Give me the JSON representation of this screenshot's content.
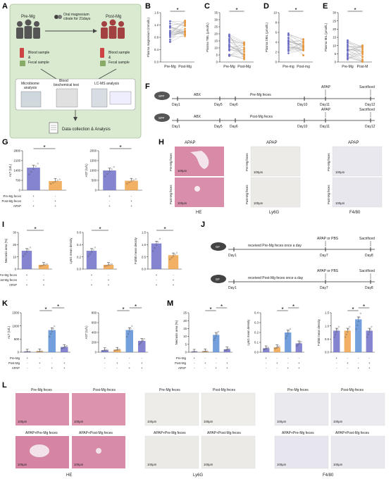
{
  "panel_labels": [
    "A",
    "B",
    "C",
    "D",
    "E",
    "F",
    "G",
    "H",
    "I",
    "J",
    "K",
    "L",
    "M"
  ],
  "panelA": {
    "pre_mg": "Pre-Mg",
    "post_mg": "Post-Mg",
    "intervention": "Oral magnesium citrate for 21days",
    "blood_fecal_1": "Blood sample & Fecal sample",
    "blood_fecal_2": "Blood sample & Fecal sample",
    "microbiome": "Microbiome analysis",
    "blood_biochem": "Blood biochemical test",
    "lcms": "LC-MS analysis",
    "data": "Data collection & Analysis"
  },
  "panelF": {
    "row1": {
      "days": [
        "Day1",
        "Day5",
        "Day6",
        "Day10",
        "Day11",
        "Day12"
      ],
      "abx": "ABX",
      "feces": "Pre-Mg feces",
      "apap": "APAP",
      "sac": "Sacrificed",
      "mouse": "SPF"
    },
    "row2": {
      "days": [
        "Day1",
        "Day5",
        "Day6",
        "Day10",
        "Day11",
        "Day12"
      ],
      "abx": "ABX",
      "feces": "Post-Mg feces",
      "apap": "APAP",
      "sac": "Sacrificed",
      "mouse": "SPF"
    }
  },
  "panelH": {
    "apap": "APAP",
    "pre": "Pre-Mg feces",
    "post": "Post-Mg feces",
    "he": "HE",
    "ly6g": "Ly6G",
    "f480": "F4/80",
    "scale": "100μm"
  },
  "panelJ": {
    "row1": {
      "mouse": "GF",
      "feces": "received Pre-Mg feces once a day",
      "apap": "APAP or PBS",
      "sac": "Sacrificed",
      "days": [
        "Day1",
        "Day7",
        "Day8"
      ]
    },
    "row2": {
      "mouse": "GF",
      "feces": "received Post-Mg feces once a day",
      "apap": "APAP or PBS",
      "sac": "Sacrificed",
      "days": [
        "Day1",
        "Day7",
        "Day8"
      ]
    }
  },
  "panelL": {
    "he": "HE",
    "ly6g": "Ly6G",
    "f480": "F4/80",
    "scale": "100μm",
    "tl": "Pre-Mg feces",
    "tr": "Post-Mg feces",
    "bl": "APAP+Pre-Mg feces",
    "br": "APAP+Post-Mg feces"
  },
  "sig": "*",
  "rows_GI": {
    "labels": [
      "Pre-Mg feces",
      "Post-Mg feces",
      "APAP"
    ],
    "cols": [
      [
        "+",
        "-",
        "+"
      ],
      [
        "-",
        "+",
        "+"
      ]
    ]
  },
  "rows_KM": {
    "labels": [
      "Pre-Mg",
      "Post-Mg",
      "APAP"
    ],
    "cols": [
      [
        "+",
        "-",
        "-",
        "+"
      ],
      [
        "-",
        "+",
        "-",
        "+"
      ],
      [
        "-",
        "-",
        "+",
        "+"
      ],
      [
        "-",
        "+",
        "+",
        "+"
      ]
    ]
  },
  "chart_data": [
    {
      "panel": "B",
      "type": "scatter",
      "ylabel": "Plasma magnesium (mmol/L)",
      "categories": [
        "Pre-Mg",
        "Post-Mg"
      ],
      "yticks": [
        "0.0",
        "0.4",
        "0.8",
        "1.2",
        "1.6"
      ],
      "ylim": [
        0,
        1.6
      ],
      "means": [
        1.0,
        1.08
      ]
    },
    {
      "panel": "C",
      "type": "scatter",
      "ylabel": "Plasma TBIL (μmol/L)",
      "categories": [
        "Pre-Mg",
        "Post-Mg"
      ],
      "yticks": [
        "0",
        "5",
        "10",
        "15",
        "20",
        "25",
        "30",
        "35"
      ],
      "ylim": [
        0,
        35
      ],
      "means": [
        12,
        8
      ]
    },
    {
      "panel": "D",
      "type": "scatter",
      "ylabel": "Plasma DBIL (μmol/L)",
      "categories": [
        "Pre-mg",
        "Post-mg"
      ],
      "yticks": [
        "0",
        "2",
        "4",
        "6",
        "8",
        "10"
      ],
      "ylim": [
        0,
        10
      ],
      "means": [
        4,
        3
      ]
    },
    {
      "panel": "E",
      "type": "scatter",
      "ylabel": "Plasma IBIL (μmol/L)",
      "categories": [
        "Pre-Mg",
        "Post-M"
      ],
      "yticks": [
        "0",
        "5",
        "10",
        "15",
        "20",
        "25",
        "30"
      ],
      "ylim": [
        0,
        30
      ],
      "means": [
        8,
        5
      ]
    },
    {
      "panel": "G",
      "type": "bar",
      "ylabel": "ALT (U/L)",
      "yticks": [
        "0",
        "700",
        "1400",
        "2100",
        "2800"
      ],
      "ylim": [
        0,
        2800
      ],
      "values": [
        1600,
        650
      ],
      "colors": [
        "#6f6fc9",
        "#f0a24a"
      ]
    },
    {
      "panel": "G2",
      "type": "bar",
      "ylabel": "AST (U/L)",
      "yticks": [
        "0",
        "500",
        "1000",
        "1500",
        "2000"
      ],
      "ylim": [
        0,
        2000
      ],
      "values": [
        1000,
        480
      ],
      "colors": [
        "#6f6fc9",
        "#f0a24a"
      ]
    },
    {
      "panel": "I",
      "type": "bar",
      "ylabel": "Necrosis area (%)",
      "yticks": [
        "0",
        "10",
        "20",
        "30"
      ],
      "ylim": [
        0,
        30
      ],
      "values": [
        15,
        3.5
      ],
      "colors": [
        "#6f6fc9",
        "#f0a24a"
      ]
    },
    {
      "panel": "I2",
      "type": "bar",
      "ylabel": "Ly6G mean density",
      "yticks": [
        "0.0",
        "0.2",
        "0.4",
        "0.6"
      ],
      "ylim": [
        0,
        0.6
      ],
      "values": [
        0.3,
        0.07
      ],
      "colors": [
        "#6f6fc9",
        "#f0a24a"
      ]
    },
    {
      "panel": "I3",
      "type": "bar",
      "ylabel": "F4/80 mean density",
      "yticks": [
        "0.0",
        "0.5",
        "1.0",
        "1.5"
      ],
      "ylim": [
        0,
        1.5
      ],
      "values": [
        1.05,
        0.57
      ],
      "colors": [
        "#6f6fc9",
        "#f0a24a"
      ]
    },
    {
      "panel": "K",
      "type": "bar",
      "ylabel": "ALT (U/L)",
      "yticks": [
        "0",
        "500",
        "1000",
        "1500"
      ],
      "ylim": [
        0,
        1500
      ],
      "values": [
        20,
        30,
        840,
        200
      ],
      "colors": [
        "#6f6fc9",
        "#f0a24a",
        "#5b8ed6",
        "#6f6fc9"
      ]
    },
    {
      "panel": "K2",
      "type": "bar",
      "ylabel": "AST (U/L)",
      "yticks": [
        "0",
        "200",
        "400",
        "600",
        "800"
      ],
      "ylim": [
        0,
        800
      ],
      "values": [
        40,
        50,
        450,
        230
      ],
      "colors": [
        "#6f6fc9",
        "#f0a24a",
        "#5b8ed6",
        "#6f6fc9"
      ]
    },
    {
      "panel": "M",
      "type": "bar",
      "ylabel": "Necrosis area (%)",
      "yticks": [
        "0",
        "5",
        "10",
        "15",
        "20",
        "25"
      ],
      "ylim": [
        0,
        25
      ],
      "values": [
        0.3,
        0.5,
        11,
        1.8
      ],
      "colors": [
        "#6f6fc9",
        "#f0a24a",
        "#5b8ed6",
        "#6f6fc9"
      ]
    },
    {
      "panel": "M2",
      "type": "bar",
      "ylabel": "Ly6G mean density",
      "yticks": [
        "0.0",
        "0.1",
        "0.2",
        "0.3",
        "0.4"
      ],
      "ylim": [
        0,
        0.4
      ],
      "values": [
        0.04,
        0.05,
        0.2,
        0.09
      ],
      "colors": [
        "#6f6fc9",
        "#f0a24a",
        "#5b8ed6",
        "#6f6fc9"
      ]
    },
    {
      "panel": "M3",
      "type": "bar",
      "ylabel": "F4/80 mean density",
      "yticks": [
        "0.0",
        "0.5",
        "1.0",
        "1.5"
      ],
      "ylim": [
        0,
        1.5
      ],
      "values": [
        0.82,
        0.82,
        1.25,
        0.82
      ],
      "colors": [
        "#6f6fc9",
        "#f0a24a",
        "#5b8ed6",
        "#6f6fc9"
      ]
    }
  ]
}
